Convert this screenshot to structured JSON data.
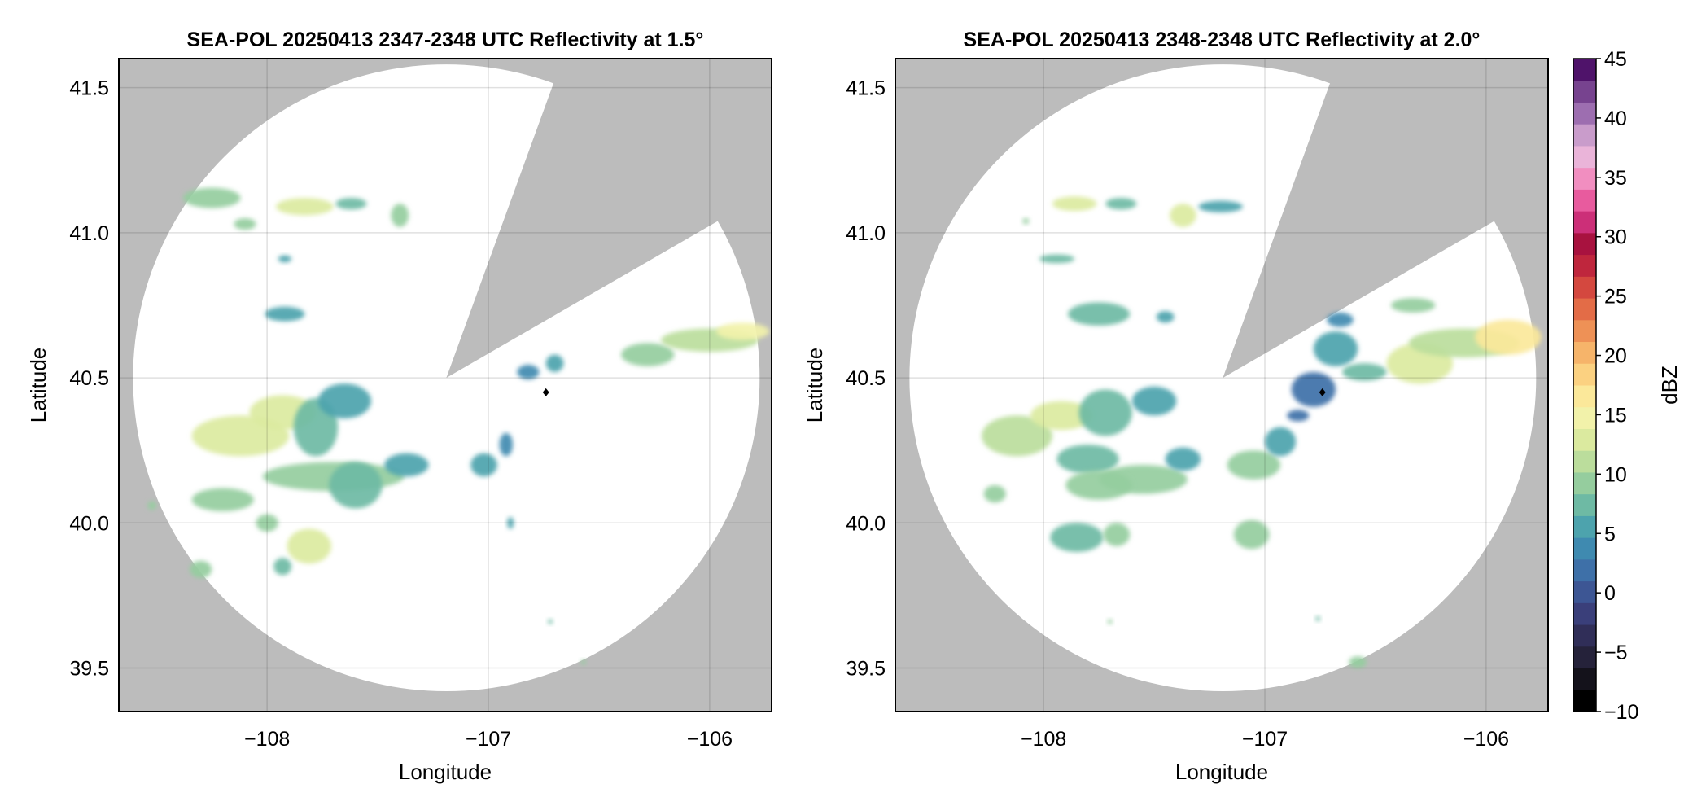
{
  "chart_data": [
    {
      "type": "heatmap",
      "title": "SEA-POL 20250413 2347-2348 UTC Reflectivity at 1.5°",
      "xlabel": "Longitude",
      "ylabel": "Latitude",
      "xlim": [
        -108.67,
        -105.72
      ],
      "ylim": [
        39.35,
        41.6
      ],
      "xticks": [
        -108,
        -107,
        -106
      ],
      "xtick_labels": [
        "−108",
        "−107",
        "−106"
      ],
      "yticks": [
        39.5,
        40.0,
        40.5,
        41.0,
        41.5
      ],
      "ytick_labels": [
        "39.5",
        "40.0",
        "40.5",
        "41.0",
        "41.5"
      ],
      "grid": true,
      "background": "#bcbcbc",
      "coverage": {
        "center": [
          -107.19,
          40.5
        ],
        "radius_deg_lat": 1.08,
        "blocked_sector_deg": [
          20,
          60
        ]
      },
      "radar_marker": {
        "lon": -106.74,
        "lat": 40.45
      },
      "echoes": [
        {
          "lon": -108.25,
          "lat": 41.12,
          "rx": 0.13,
          "ry": 0.035,
          "dbz": 15
        },
        {
          "lon": -108.1,
          "lat": 41.03,
          "rx": 0.05,
          "ry": 0.02,
          "dbz": 17
        },
        {
          "lon": -107.83,
          "lat": 41.09,
          "rx": 0.13,
          "ry": 0.03,
          "dbz": 22
        },
        {
          "lon": -107.62,
          "lat": 41.1,
          "rx": 0.07,
          "ry": 0.02,
          "dbz": 13
        },
        {
          "lon": -107.4,
          "lat": 41.06,
          "rx": 0.04,
          "ry": 0.04,
          "dbz": 16
        },
        {
          "lon": -107.92,
          "lat": 40.91,
          "rx": 0.03,
          "ry": 0.012,
          "dbz": 12
        },
        {
          "lon": -107.92,
          "lat": 40.72,
          "rx": 0.09,
          "ry": 0.025,
          "dbz": 12
        },
        {
          "lon": -108.12,
          "lat": 40.3,
          "rx": 0.22,
          "ry": 0.07,
          "dbz": 20
        },
        {
          "lon": -107.93,
          "lat": 40.38,
          "rx": 0.15,
          "ry": 0.06,
          "dbz": 22
        },
        {
          "lon": -107.78,
          "lat": 40.33,
          "rx": 0.1,
          "ry": 0.1,
          "dbz": 14
        },
        {
          "lon": -107.65,
          "lat": 40.42,
          "rx": 0.12,
          "ry": 0.06,
          "dbz": 12
        },
        {
          "lon": -107.7,
          "lat": 40.16,
          "rx": 0.32,
          "ry": 0.05,
          "dbz": 15
        },
        {
          "lon": -107.6,
          "lat": 40.13,
          "rx": 0.12,
          "ry": 0.08,
          "dbz": 14
        },
        {
          "lon": -107.37,
          "lat": 40.2,
          "rx": 0.1,
          "ry": 0.04,
          "dbz": 10
        },
        {
          "lon": -108.2,
          "lat": 40.08,
          "rx": 0.14,
          "ry": 0.04,
          "dbz": 17
        },
        {
          "lon": -108.0,
          "lat": 40.0,
          "rx": 0.05,
          "ry": 0.03,
          "dbz": 15
        },
        {
          "lon": -107.81,
          "lat": 39.92,
          "rx": 0.1,
          "ry": 0.06,
          "dbz": 20
        },
        {
          "lon": -107.93,
          "lat": 39.85,
          "rx": 0.04,
          "ry": 0.03,
          "dbz": 14
        },
        {
          "lon": -108.3,
          "lat": 39.84,
          "rx": 0.05,
          "ry": 0.03,
          "dbz": 16
        },
        {
          "lon": -108.52,
          "lat": 40.06,
          "rx": 0.02,
          "ry": 0.015,
          "dbz": 15
        },
        {
          "lon": -107.02,
          "lat": 40.2,
          "rx": 0.06,
          "ry": 0.04,
          "dbz": 10
        },
        {
          "lon": -106.92,
          "lat": 40.27,
          "rx": 0.03,
          "ry": 0.04,
          "dbz": 8
        },
        {
          "lon": -106.82,
          "lat": 40.52,
          "rx": 0.05,
          "ry": 0.025,
          "dbz": 9
        },
        {
          "lon": -106.7,
          "lat": 40.55,
          "rx": 0.04,
          "ry": 0.03,
          "dbz": 11
        },
        {
          "lon": -106.28,
          "lat": 40.58,
          "rx": 0.12,
          "ry": 0.04,
          "dbz": 17
        },
        {
          "lon": -106.0,
          "lat": 40.63,
          "rx": 0.22,
          "ry": 0.04,
          "dbz": 19
        },
        {
          "lon": -105.85,
          "lat": 40.66,
          "rx": 0.12,
          "ry": 0.03,
          "dbz": 24
        },
        {
          "lon": -106.9,
          "lat": 40.0,
          "rx": 0.015,
          "ry": 0.02,
          "dbz": 10
        },
        {
          "lon": -106.72,
          "lat": 39.66,
          "rx": 0.01,
          "ry": 0.008,
          "dbz": 14
        },
        {
          "lon": -106.57,
          "lat": 39.52,
          "rx": 0.012,
          "ry": 0.008,
          "dbz": 15
        }
      ]
    },
    {
      "type": "heatmap",
      "title": "SEA-POL 20250413 2348-2348 UTC Reflectivity at 2.0°",
      "xlabel": "Longitude",
      "ylabel": "Latitude",
      "xlim": [
        -108.67,
        -105.72
      ],
      "ylim": [
        39.35,
        41.6
      ],
      "xticks": [
        -108,
        -107,
        -106
      ],
      "xtick_labels": [
        "−108",
        "−107",
        "−106"
      ],
      "yticks": [
        39.5,
        40.0,
        40.5,
        41.0,
        41.5
      ],
      "ytick_labels": [
        "39.5",
        "40.0",
        "40.5",
        "41.0",
        "41.5"
      ],
      "grid": true,
      "background": "#bcbcbc",
      "coverage": {
        "center": [
          -107.19,
          40.5
        ],
        "radius_deg_lat": 1.08,
        "blocked_sector_deg": [
          20,
          60
        ]
      },
      "radar_marker": {
        "lon": -106.74,
        "lat": 40.45
      },
      "echoes": [
        {
          "lon": -107.86,
          "lat": 41.1,
          "rx": 0.1,
          "ry": 0.025,
          "dbz": 22
        },
        {
          "lon": -107.65,
          "lat": 41.1,
          "rx": 0.07,
          "ry": 0.02,
          "dbz": 13
        },
        {
          "lon": -107.37,
          "lat": 41.06,
          "rx": 0.06,
          "ry": 0.04,
          "dbz": 22
        },
        {
          "lon": -107.2,
          "lat": 41.09,
          "rx": 0.1,
          "ry": 0.02,
          "dbz": 12
        },
        {
          "lon": -108.08,
          "lat": 41.04,
          "rx": 0.015,
          "ry": 0.01,
          "dbz": 15
        },
        {
          "lon": -107.94,
          "lat": 40.91,
          "rx": 0.08,
          "ry": 0.015,
          "dbz": 13
        },
        {
          "lon": -107.75,
          "lat": 40.72,
          "rx": 0.14,
          "ry": 0.04,
          "dbz": 13
        },
        {
          "lon": -107.45,
          "lat": 40.71,
          "rx": 0.04,
          "ry": 0.02,
          "dbz": 12
        },
        {
          "lon": -108.12,
          "lat": 40.3,
          "rx": 0.16,
          "ry": 0.07,
          "dbz": 18
        },
        {
          "lon": -107.92,
          "lat": 40.37,
          "rx": 0.14,
          "ry": 0.05,
          "dbz": 22
        },
        {
          "lon": -107.72,
          "lat": 40.38,
          "rx": 0.12,
          "ry": 0.08,
          "dbz": 14
        },
        {
          "lon": -107.5,
          "lat": 40.42,
          "rx": 0.1,
          "ry": 0.05,
          "dbz": 12
        },
        {
          "lon": -107.8,
          "lat": 40.22,
          "rx": 0.14,
          "ry": 0.05,
          "dbz": 14
        },
        {
          "lon": -107.55,
          "lat": 40.15,
          "rx": 0.2,
          "ry": 0.05,
          "dbz": 16
        },
        {
          "lon": -107.75,
          "lat": 40.13,
          "rx": 0.15,
          "ry": 0.05,
          "dbz": 15
        },
        {
          "lon": -107.37,
          "lat": 40.22,
          "rx": 0.08,
          "ry": 0.04,
          "dbz": 11
        },
        {
          "lon": -107.05,
          "lat": 40.2,
          "rx": 0.12,
          "ry": 0.05,
          "dbz": 16
        },
        {
          "lon": -106.93,
          "lat": 40.28,
          "rx": 0.07,
          "ry": 0.05,
          "dbz": 11
        },
        {
          "lon": -107.85,
          "lat": 39.95,
          "rx": 0.12,
          "ry": 0.05,
          "dbz": 14
        },
        {
          "lon": -107.67,
          "lat": 39.96,
          "rx": 0.06,
          "ry": 0.04,
          "dbz": 16
        },
        {
          "lon": -108.22,
          "lat": 40.1,
          "rx": 0.05,
          "ry": 0.03,
          "dbz": 17
        },
        {
          "lon": -107.06,
          "lat": 39.96,
          "rx": 0.08,
          "ry": 0.05,
          "dbz": 17
        },
        {
          "lon": -106.78,
          "lat": 40.46,
          "rx": 0.1,
          "ry": 0.06,
          "dbz": 5
        },
        {
          "lon": -106.68,
          "lat": 40.6,
          "rx": 0.1,
          "ry": 0.06,
          "dbz": 11
        },
        {
          "lon": -106.66,
          "lat": 40.7,
          "rx": 0.06,
          "ry": 0.025,
          "dbz": 9
        },
        {
          "lon": -106.85,
          "lat": 40.37,
          "rx": 0.05,
          "ry": 0.02,
          "dbz": 6
        },
        {
          "lon": -106.3,
          "lat": 40.55,
          "rx": 0.15,
          "ry": 0.07,
          "dbz": 22
        },
        {
          "lon": -106.1,
          "lat": 40.62,
          "rx": 0.25,
          "ry": 0.05,
          "dbz": 19
        },
        {
          "lon": -105.9,
          "lat": 40.64,
          "rx": 0.15,
          "ry": 0.06,
          "dbz": 25
        },
        {
          "lon": -106.55,
          "lat": 40.52,
          "rx": 0.1,
          "ry": 0.03,
          "dbz": 14
        },
        {
          "lon": -106.33,
          "lat": 40.75,
          "rx": 0.1,
          "ry": 0.025,
          "dbz": 15
        },
        {
          "lon": -106.58,
          "lat": 39.52,
          "rx": 0.04,
          "ry": 0.02,
          "dbz": 17
        },
        {
          "lon": -106.76,
          "lat": 39.67,
          "rx": 0.01,
          "ry": 0.008,
          "dbz": 14
        },
        {
          "lon": -107.7,
          "lat": 39.66,
          "rx": 0.01,
          "ry": 0.008,
          "dbz": 15
        }
      ]
    }
  ],
  "colorbar": {
    "label": "dBZ",
    "min": -10,
    "max": 45,
    "step": 2.5,
    "ticks": [
      -10,
      -5,
      0,
      5,
      10,
      15,
      20,
      25,
      30,
      35,
      40,
      45
    ],
    "tick_labels": [
      "−10",
      "−5",
      "0",
      "5",
      "10",
      "15",
      "20",
      "25",
      "30",
      "35",
      "40",
      "45"
    ],
    "colors": [
      "#000000",
      "#14121b",
      "#25223a",
      "#302e58",
      "#3a3f7a",
      "#3d5694",
      "#3e70a8",
      "#3f8ab0",
      "#4da3ad",
      "#6ebaa4",
      "#95cd9e",
      "#bbdd9c",
      "#dbea9f",
      "#f2f2aa",
      "#fbe89a",
      "#fbd181",
      "#f6b46a",
      "#ee9156",
      "#e36c47",
      "#d4483f",
      "#bf263d",
      "#a8123f",
      "#cc2f78",
      "#e85b9e",
      "#f18ec0",
      "#eab4d9",
      "#c99ccb",
      "#9d6eb0",
      "#77438f",
      "#4f136a"
    ]
  }
}
